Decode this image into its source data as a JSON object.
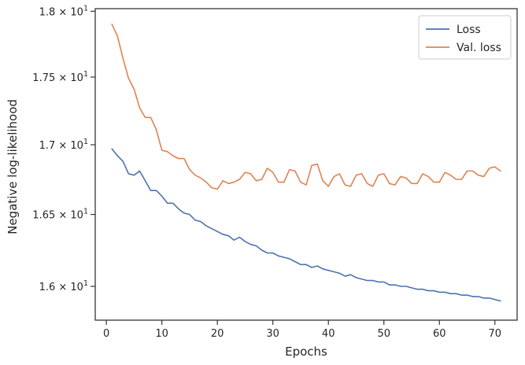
{
  "chart_data": {
    "type": "line",
    "xlabel": "Epochs",
    "ylabel": "Negative log-likelihood",
    "xlim": [
      -2,
      74
    ],
    "ylim": [
      15.77,
      18.02
    ],
    "y_scale": "log",
    "x_ticks": [
      0,
      10,
      20,
      30,
      40,
      50,
      60,
      70
    ],
    "y_ticks": [
      {
        "value": 16.0,
        "mantissa": "1.6",
        "base": "10",
        "exp": "1"
      },
      {
        "value": 16.5,
        "mantissa": "1.65",
        "base": "10",
        "exp": "1"
      },
      {
        "value": 17.0,
        "mantissa": "1.7",
        "base": "10",
        "exp": "1"
      },
      {
        "value": 17.5,
        "mantissa": "1.75",
        "base": "10",
        "exp": "1"
      },
      {
        "value": 18.0,
        "mantissa": "1.8",
        "base": "10",
        "exp": "1"
      }
    ],
    "times_sign": "×",
    "grid": false,
    "legend_position": "top-right",
    "x": [
      1,
      2,
      3,
      4,
      5,
      6,
      7,
      8,
      9,
      10,
      11,
      12,
      13,
      14,
      15,
      16,
      17,
      18,
      19,
      20,
      21,
      22,
      23,
      24,
      25,
      26,
      27,
      28,
      29,
      30,
      31,
      32,
      33,
      34,
      35,
      36,
      37,
      38,
      39,
      40,
      41,
      42,
      43,
      44,
      45,
      46,
      47,
      48,
      49,
      50,
      51,
      52,
      53,
      54,
      55,
      56,
      57,
      58,
      59,
      60,
      61,
      62,
      63,
      64,
      65,
      66,
      67,
      68,
      69,
      70,
      71
    ],
    "series": [
      {
        "name": "Loss",
        "color": "#4c72b0",
        "values": [
          16.97,
          16.92,
          16.88,
          16.79,
          16.78,
          16.81,
          16.74,
          16.67,
          16.67,
          16.63,
          16.58,
          16.58,
          16.54,
          16.51,
          16.5,
          16.46,
          16.45,
          16.42,
          16.4,
          16.38,
          16.36,
          16.35,
          16.32,
          16.34,
          16.31,
          16.29,
          16.28,
          16.25,
          16.23,
          16.23,
          16.21,
          16.2,
          16.19,
          16.17,
          16.15,
          16.15,
          16.13,
          16.14,
          16.12,
          16.11,
          16.1,
          16.09,
          16.07,
          16.08,
          16.06,
          16.05,
          16.04,
          16.04,
          16.03,
          16.03,
          16.01,
          16.01,
          16.0,
          16.0,
          15.99,
          15.98,
          15.98,
          15.97,
          15.97,
          15.96,
          15.96,
          15.95,
          15.95,
          15.94,
          15.94,
          15.93,
          15.93,
          15.92,
          15.92,
          15.91,
          15.9
        ]
      },
      {
        "name": "Val. loss",
        "color": "#dd8452",
        "values": [
          17.9,
          17.81,
          17.64,
          17.49,
          17.41,
          17.27,
          17.2,
          17.2,
          17.11,
          16.96,
          16.95,
          16.92,
          16.9,
          16.9,
          16.82,
          16.78,
          16.76,
          16.73,
          16.69,
          16.68,
          16.74,
          16.72,
          16.73,
          16.75,
          16.8,
          16.79,
          16.74,
          16.75,
          16.83,
          16.8,
          16.73,
          16.73,
          16.82,
          16.81,
          16.73,
          16.71,
          16.85,
          16.86,
          16.74,
          16.7,
          16.77,
          16.79,
          16.71,
          16.7,
          16.78,
          16.79,
          16.72,
          16.7,
          16.78,
          16.79,
          16.72,
          16.71,
          16.77,
          16.76,
          16.72,
          16.72,
          16.79,
          16.77,
          16.73,
          16.73,
          16.8,
          16.78,
          16.75,
          16.75,
          16.81,
          16.81,
          16.78,
          16.77,
          16.83,
          16.84,
          16.81
        ]
      }
    ]
  }
}
